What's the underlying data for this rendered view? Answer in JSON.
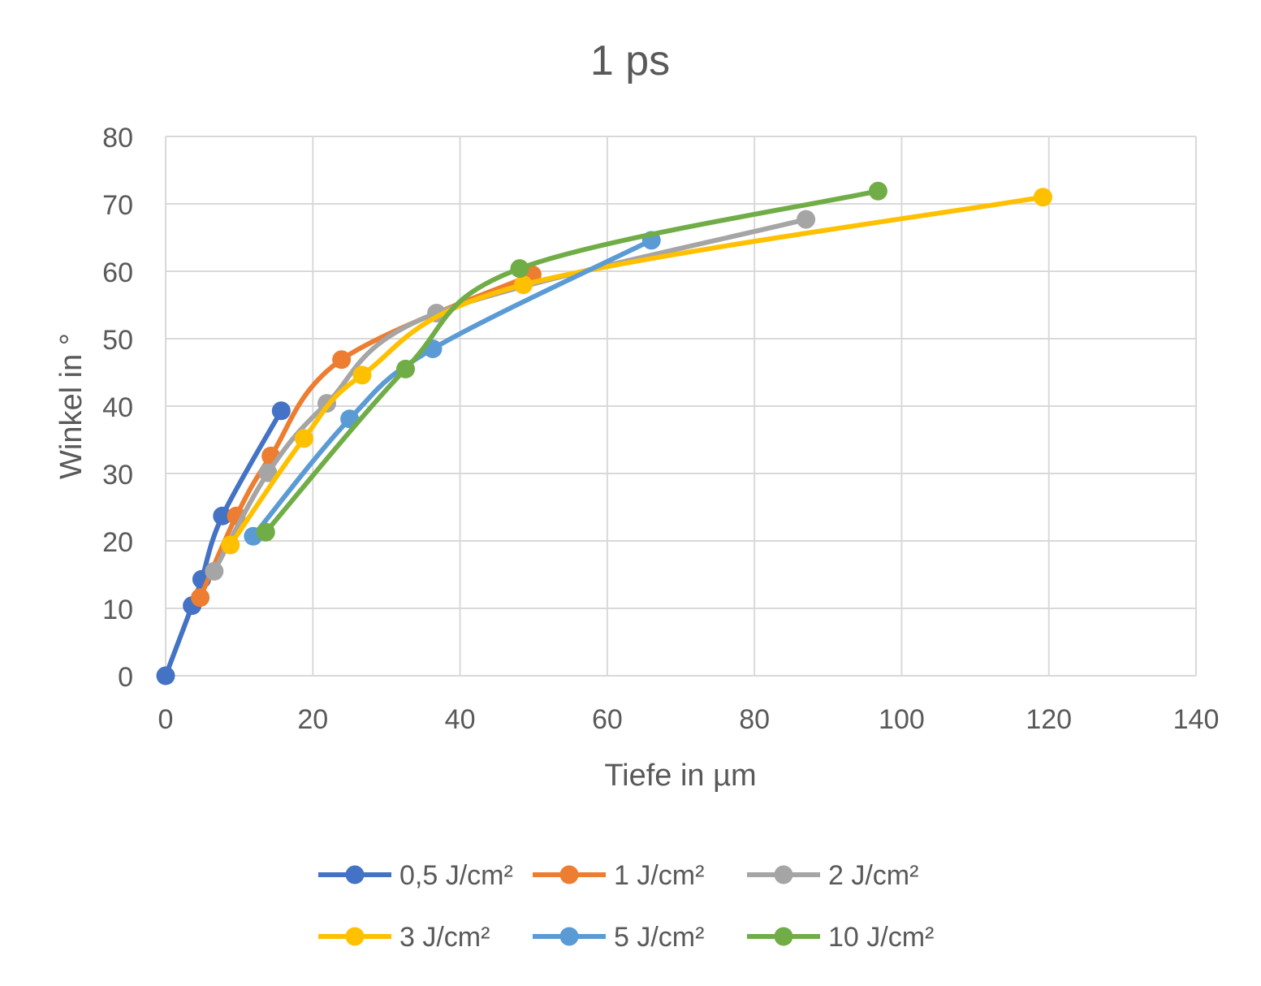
{
  "chart_data": {
    "type": "line",
    "title": "1 ps",
    "xlabel": "Tiefe in µm",
    "ylabel": "Winkel in °",
    "xlim": [
      0,
      140
    ],
    "ylim": [
      0,
      80
    ],
    "x_ticks": [
      0,
      20,
      40,
      60,
      80,
      100,
      120,
      140
    ],
    "y_ticks": [
      0,
      10,
      20,
      30,
      40,
      50,
      60,
      70,
      80
    ],
    "grid": true,
    "legend_position": "bottom",
    "smooth": true,
    "series": [
      {
        "name": "0,5 J/cm²",
        "color": "#4472C4",
        "points": [
          [
            0,
            0
          ],
          [
            3.6,
            10.4
          ],
          [
            4.9,
            14.3
          ],
          [
            7.7,
            23.7
          ],
          [
            15.7,
            39.3
          ]
        ]
      },
      {
        "name": "1 J/cm²",
        "color": "#ED7D31",
        "points": [
          [
            4.7,
            11.6
          ],
          [
            9.6,
            23.7
          ],
          [
            14.3,
            32.6
          ],
          [
            23.9,
            46.9
          ],
          [
            49.8,
            59.5
          ]
        ]
      },
      {
        "name": "2 J/cm²",
        "color": "#A5A5A5",
        "points": [
          [
            6.6,
            15.5
          ],
          [
            13.9,
            30.1
          ],
          [
            21.9,
            40.4
          ],
          [
            36.8,
            53.8
          ],
          [
            87.0,
            67.7
          ]
        ]
      },
      {
        "name": "3 J/cm²",
        "color": "#FFC000",
        "points": [
          [
            8.8,
            19.4
          ],
          [
            18.8,
            35.2
          ],
          [
            26.7,
            44.6
          ],
          [
            48.6,
            58.0
          ],
          [
            119.2,
            71.0
          ]
        ]
      },
      {
        "name": "5 J/cm²",
        "color": "#5B9BD5",
        "points": [
          [
            11.9,
            20.7
          ],
          [
            25.0,
            38.1
          ],
          [
            36.3,
            48.5
          ],
          [
            66.0,
            64.6
          ]
        ]
      },
      {
        "name": "10 J/cm²",
        "color": "#70AD47",
        "points": [
          [
            13.6,
            21.3
          ],
          [
            32.6,
            45.5
          ],
          [
            48.1,
            60.4
          ],
          [
            96.8,
            71.9
          ]
        ]
      }
    ]
  }
}
